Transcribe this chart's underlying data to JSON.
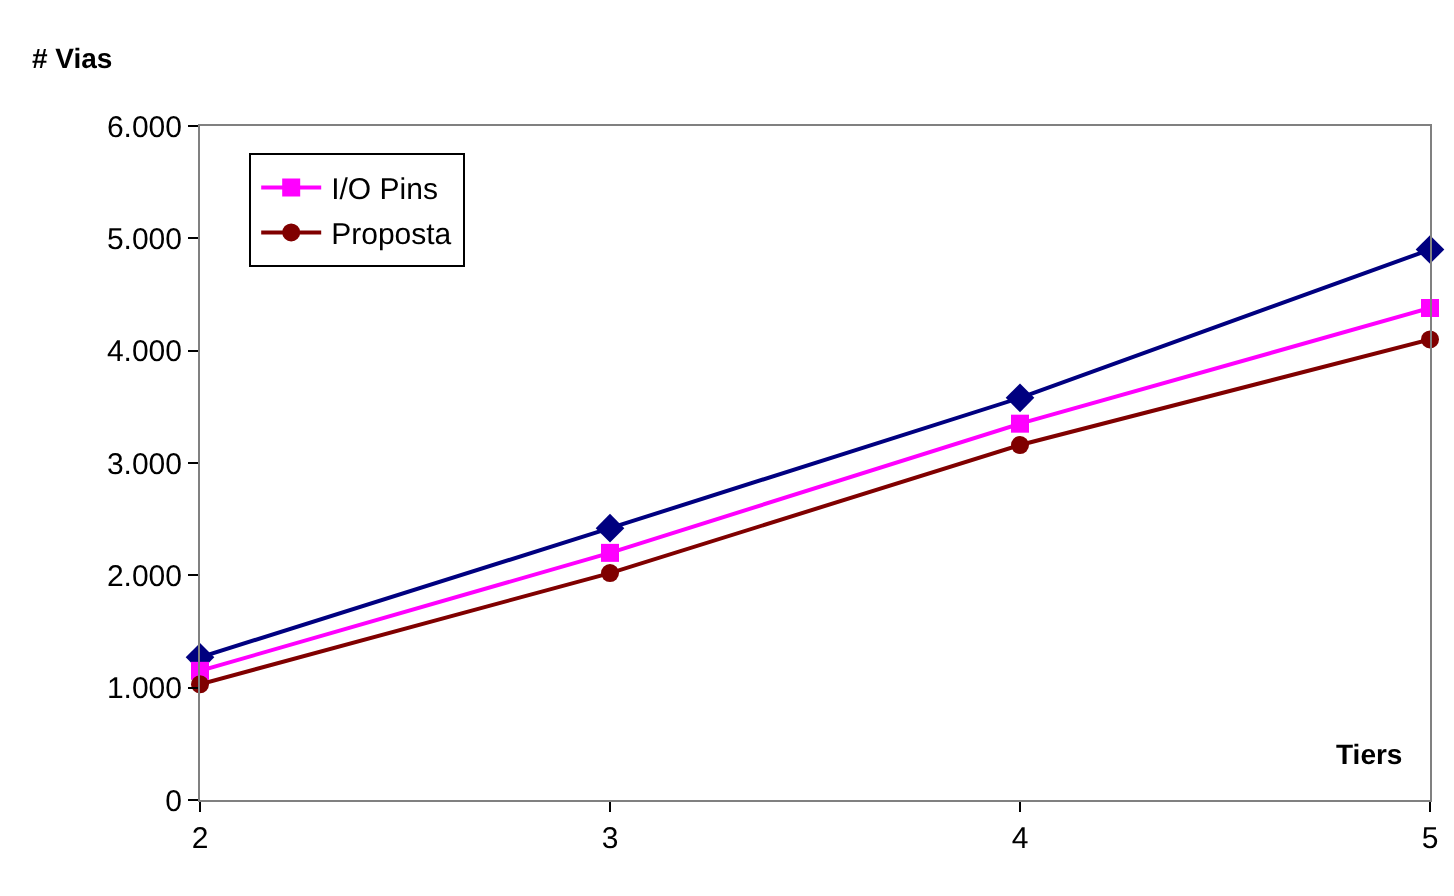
{
  "chart_data": {
    "type": "line",
    "ylabel": "# Vias",
    "xlabel": "Tiers",
    "x": [
      2,
      3,
      4,
      5
    ],
    "series": [
      {
        "color": "#000080",
        "marker": "diamond",
        "values": [
          1270,
          2420,
          3580,
          4900
        ]
      },
      {
        "name": "I/O Pins",
        "color": "#ff00ff",
        "marker": "square",
        "values": [
          1150,
          2200,
          3350,
          4380
        ]
      },
      {
        "name": "Proposta",
        "color": "#800000",
        "marker": "circle",
        "values": [
          1030,
          2020,
          3160,
          4100
        ]
      }
    ],
    "xlim": [
      2,
      5
    ],
    "xticks": [
      2,
      3,
      4,
      5
    ],
    "ylim": [
      0,
      6000
    ],
    "yticks": [
      {
        "value": 0,
        "label": "0"
      },
      {
        "value": 1000,
        "label": "1.000"
      },
      {
        "value": 2000,
        "label": "2.000"
      },
      {
        "value": 3000,
        "label": "3.000"
      },
      {
        "value": 4000,
        "label": "4.000"
      },
      {
        "value": 5000,
        "label": "5.000"
      },
      {
        "value": 6000,
        "label": "6.000"
      }
    ],
    "grid": false,
    "legend": "top left",
    "line_style": "solid"
  }
}
